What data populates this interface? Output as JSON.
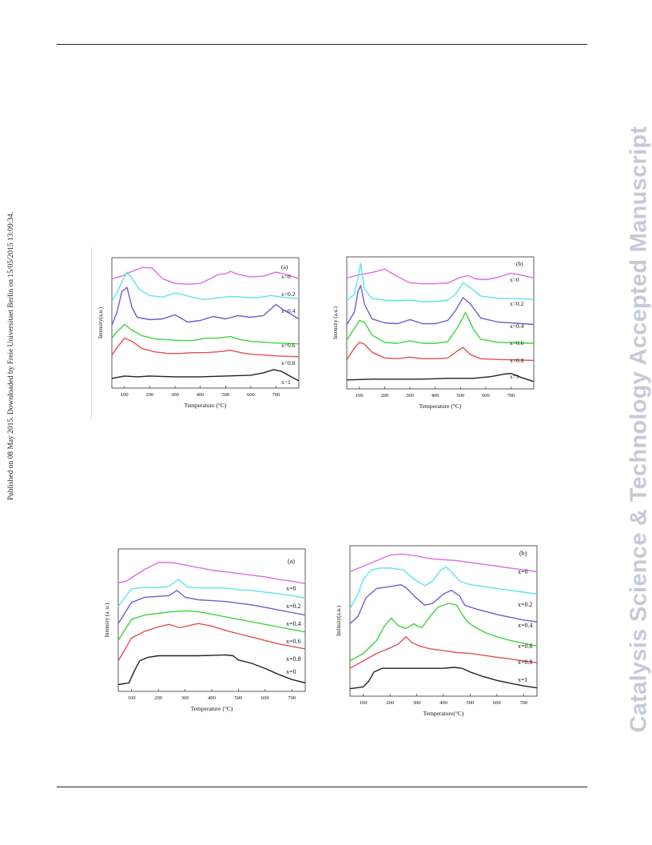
{
  "page": {
    "side_note": "Published on 08 May 2015. Downloaded by Freie Universitaet Berlin on 15/05/2015 13:09:34.",
    "watermark": "Catalysis Science & Technology Accepted Manuscript"
  },
  "figures": {
    "top": [
      {
        "panel_label": "(a)",
        "ylabel": "Intensity(a.u.)",
        "xlabel": "Temperature (°C)",
        "labels": [
          "x=0",
          "x=0.2",
          "x=0.4",
          "x=0.6",
          "x=0.8",
          "x=1"
        ]
      },
      {
        "panel_label": "(b)",
        "ylabel": "Intensity (a.u.)",
        "xlabel": "Temperature (°C)",
        "labels": [
          "x=0",
          "x=0.2",
          "x=0.4",
          "x=0.6",
          "x=0.8",
          "x=1"
        ]
      }
    ],
    "bottom": [
      {
        "panel_label": "(a)",
        "ylabel": "Intensity (a. u.)",
        "xlabel": "Temperature (°C)",
        "labels": [
          "x=0",
          "x=0.2",
          "x=0.4",
          "x=0.6",
          "x=0.8",
          "x=0"
        ]
      },
      {
        "panel_label": "(b)",
        "ylabel": "Intinsity(a.u.)",
        "xlabel": "Temperature(°C)",
        "labels": [
          "x=0",
          "x=0.2",
          "x=0.4",
          "x=0.6",
          "x=0.8",
          "x=1"
        ]
      }
    ]
  },
  "chart_data": [
    {
      "type": "line",
      "panel": "(a)",
      "xlabel": "Temperature (°C)",
      "ylabel": "Intensity(a.u.)",
      "xlim": [
        50,
        790
      ],
      "xticks": [
        100,
        200,
        300,
        400,
        500,
        600,
        700
      ],
      "colors": [
        "#e06be0",
        "#5ce6e6",
        "#6a5fd0",
        "#3ed43e",
        "#e05252",
        "#222222"
      ],
      "series": [
        {
          "name": "x=0",
          "x": [
            50,
            90,
            130,
            170,
            210,
            250,
            300,
            350,
            400,
            440,
            470,
            500,
            520,
            550,
            600,
            650,
            700,
            740,
            790
          ],
          "y": [
            5.3,
            5.45,
            5.75,
            6.0,
            5.95,
            5.3,
            5.0,
            4.95,
            5.0,
            5.3,
            5.55,
            5.6,
            5.75,
            5.55,
            5.4,
            5.45,
            5.7,
            5.55,
            5.3
          ]
        },
        {
          "name": "x=0.2",
          "x": [
            50,
            70,
            90,
            110,
            130,
            160,
            200,
            250,
            300,
            330,
            380,
            420,
            470,
            520,
            570,
            620,
            680,
            720,
            790
          ],
          "y": [
            3.9,
            4.4,
            5.1,
            5.7,
            5.3,
            4.6,
            4.25,
            4.15,
            4.4,
            4.3,
            4.1,
            4.0,
            4.1,
            4.2,
            4.15,
            4.1,
            4.25,
            4.15,
            4.05
          ]
        },
        {
          "name": "x=0.4",
          "x": [
            50,
            70,
            90,
            110,
            130,
            150,
            200,
            250,
            300,
            350,
            400,
            450,
            500,
            550,
            600,
            650,
            700,
            730,
            790
          ],
          "y": [
            2.4,
            3.2,
            4.5,
            4.75,
            3.5,
            2.9,
            2.75,
            2.8,
            3.05,
            2.6,
            2.7,
            2.95,
            2.8,
            3.0,
            2.9,
            3.0,
            3.7,
            3.35,
            2.8
          ]
        },
        {
          "name": "x=0.6",
          "x": [
            50,
            70,
            100,
            130,
            170,
            220,
            270,
            320,
            370,
            420,
            470,
            520,
            560,
            600,
            650,
            700,
            790
          ],
          "y": [
            1.6,
            2.0,
            2.45,
            2.1,
            1.75,
            1.55,
            1.5,
            1.45,
            1.45,
            1.6,
            1.6,
            1.7,
            1.5,
            1.4,
            1.35,
            1.3,
            1.25
          ]
        },
        {
          "name": "x=0.8",
          "x": [
            50,
            70,
            100,
            130,
            170,
            220,
            270,
            320,
            370,
            420,
            470,
            520,
            560,
            600,
            650,
            700,
            790
          ],
          "y": [
            0.55,
            1.0,
            1.6,
            1.4,
            0.95,
            0.75,
            0.65,
            0.65,
            0.7,
            0.7,
            0.75,
            0.85,
            0.7,
            0.6,
            0.55,
            0.5,
            0.45
          ]
        },
        {
          "name": "x=1",
          "x": [
            50,
            100,
            150,
            200,
            300,
            400,
            500,
            600,
            650,
            690,
            720,
            760,
            790
          ],
          "y": [
            -0.9,
            -0.75,
            -0.8,
            -0.75,
            -0.8,
            -0.8,
            -0.75,
            -0.7,
            -0.55,
            -0.35,
            -0.45,
            -0.8,
            -1.05
          ]
        }
      ]
    },
    {
      "type": "line",
      "panel": "(b)",
      "xlabel": "Temperature (°C)",
      "ylabel": "Intensity (a.u.)",
      "xlim": [
        50,
        790
      ],
      "xticks": [
        100,
        200,
        300,
        400,
        500,
        600,
        700
      ],
      "colors": [
        "#e06be0",
        "#5ce6e6",
        "#6a5fd0",
        "#3ed43e",
        "#e05252",
        "#222222"
      ],
      "series": [
        {
          "name": "x=0",
          "x": [
            50,
            100,
            150,
            200,
            250,
            300,
            350,
            400,
            450,
            500,
            530,
            560,
            600,
            650,
            700,
            750,
            790
          ],
          "y": [
            5.3,
            5.5,
            5.65,
            5.85,
            5.4,
            5.0,
            4.95,
            4.95,
            5.0,
            5.35,
            5.45,
            5.25,
            5.2,
            5.35,
            5.6,
            5.45,
            5.3
          ]
        },
        {
          "name": "x=0.2",
          "x": [
            50,
            80,
            95,
            105,
            120,
            150,
            200,
            250,
            300,
            350,
            400,
            450,
            480,
            510,
            540,
            580,
            650,
            700,
            790
          ],
          "y": [
            3.9,
            4.3,
            5.3,
            6.2,
            4.6,
            4.05,
            3.95,
            3.9,
            3.95,
            3.85,
            3.85,
            3.95,
            4.3,
            5.0,
            4.7,
            4.2,
            4.05,
            4.05,
            4.0
          ]
        },
        {
          "name": "x=0.4",
          "x": [
            50,
            80,
            95,
            105,
            120,
            150,
            200,
            250,
            300,
            350,
            400,
            450,
            480,
            510,
            540,
            580,
            650,
            700,
            790
          ],
          "y": [
            2.45,
            3.2,
            4.5,
            4.85,
            3.7,
            2.8,
            2.55,
            2.5,
            2.75,
            2.5,
            2.5,
            2.7,
            3.3,
            4.1,
            3.7,
            2.85,
            2.6,
            2.55,
            2.45
          ]
        },
        {
          "name": "x=0.6",
          "x": [
            50,
            80,
            100,
            120,
            150,
            200,
            250,
            300,
            350,
            400,
            450,
            490,
            520,
            550,
            580,
            650,
            790
          ],
          "y": [
            1.5,
            2.2,
            2.7,
            2.6,
            1.8,
            1.35,
            1.3,
            1.45,
            1.3,
            1.3,
            1.4,
            2.3,
            3.2,
            2.2,
            1.55,
            1.35,
            1.3
          ]
        },
        {
          "name": "x=0.8",
          "x": [
            50,
            80,
            100,
            120,
            150,
            200,
            250,
            300,
            350,
            400,
            450,
            490,
            510,
            540,
            580,
            650,
            790
          ],
          "y": [
            0.3,
            1.0,
            1.35,
            1.25,
            0.75,
            0.4,
            0.35,
            0.45,
            0.35,
            0.35,
            0.4,
            0.85,
            1.05,
            0.6,
            0.35,
            0.3,
            0.25
          ]
        },
        {
          "name": "x=1",
          "x": [
            50,
            150,
            250,
            350,
            450,
            550,
            620,
            670,
            700,
            740,
            790
          ],
          "y": [
            -0.95,
            -0.9,
            -0.9,
            -0.9,
            -0.85,
            -0.85,
            -0.75,
            -0.6,
            -0.55,
            -0.8,
            -1.05
          ]
        }
      ]
    },
    {
      "type": "line",
      "panel": "(a)",
      "xlabel": "Temperature (°C)",
      "ylabel": "Intensity (a. u.)",
      "xlim": [
        50,
        750
      ],
      "xticks": [
        100,
        200,
        300,
        400,
        500,
        600,
        700
      ],
      "colors": [
        "#e06be0",
        "#5ce6e6",
        "#6a5fd0",
        "#3ed43e",
        "#e05252",
        "#222222"
      ],
      "series": [
        {
          "name": "x=0",
          "x": [
            50,
            80,
            100,
            150,
            200,
            250,
            300,
            350,
            400,
            450,
            500,
            550,
            600,
            650,
            700,
            750
          ],
          "y": [
            6.0,
            6.1,
            6.3,
            6.8,
            7.2,
            7.2,
            7.05,
            6.9,
            6.75,
            6.65,
            6.55,
            6.45,
            6.35,
            6.2,
            6.1,
            5.95
          ]
        },
        {
          "name": "x=0.2",
          "x": [
            50,
            80,
            100,
            150,
            200,
            240,
            275,
            310,
            350,
            400,
            450,
            500,
            550,
            600,
            650,
            700,
            750
          ],
          "y": [
            4.6,
            5.25,
            5.65,
            5.75,
            5.7,
            5.8,
            6.2,
            5.75,
            5.7,
            5.7,
            5.7,
            5.6,
            5.55,
            5.45,
            5.35,
            5.25,
            5.1
          ]
        },
        {
          "name": "x=0.4",
          "x": [
            50,
            80,
            100,
            150,
            200,
            240,
            270,
            300,
            350,
            400,
            450,
            500,
            550,
            600,
            650,
            700,
            750
          ],
          "y": [
            3.6,
            4.35,
            4.85,
            5.15,
            5.2,
            5.25,
            5.55,
            5.15,
            5.0,
            4.95,
            4.9,
            4.8,
            4.7,
            4.55,
            4.4,
            4.25,
            4.1
          ]
        },
        {
          "name": "x=0.6",
          "x": [
            50,
            80,
            100,
            150,
            200,
            250,
            300,
            350,
            400,
            450,
            500,
            550,
            600,
            650,
            700,
            750
          ],
          "y": [
            2.6,
            3.35,
            3.85,
            4.1,
            4.2,
            4.3,
            4.35,
            4.3,
            4.15,
            4.0,
            3.85,
            3.7,
            3.55,
            3.4,
            3.25,
            3.1
          ]
        },
        {
          "name": "x=0.8",
          "x": [
            50,
            80,
            100,
            150,
            200,
            240,
            280,
            320,
            350,
            400,
            450,
            500,
            550,
            600,
            650,
            700,
            750
          ],
          "y": [
            1.4,
            2.2,
            2.75,
            3.15,
            3.4,
            3.55,
            3.35,
            3.5,
            3.6,
            3.45,
            3.2,
            3.0,
            2.8,
            2.6,
            2.4,
            2.25,
            2.1
          ]
        },
        {
          "name": "x=0",
          "x": [
            50,
            90,
            110,
            130,
            160,
            200,
            250,
            300,
            350,
            400,
            450,
            480,
            500,
            550,
            600,
            650,
            700,
            750
          ],
          "y": [
            0.0,
            0.1,
            0.8,
            1.4,
            1.6,
            1.7,
            1.7,
            1.7,
            1.7,
            1.72,
            1.75,
            1.7,
            1.45,
            1.25,
            0.95,
            0.6,
            0.3,
            0.1
          ]
        }
      ]
    },
    {
      "type": "line",
      "panel": "(b)",
      "xlabel": "Temperature(°C)",
      "ylabel": "Intinsity(a.u.)",
      "xlim": [
        50,
        750
      ],
      "xticks": [
        100,
        200,
        300,
        400,
        500,
        600,
        700
      ],
      "colors": [
        "#e06be0",
        "#5ce6e6",
        "#6a5fd0",
        "#3ed43e",
        "#e05252",
        "#222222"
      ],
      "series": [
        {
          "name": "x=0",
          "x": [
            50,
            100,
            150,
            200,
            250,
            300,
            350,
            400,
            450,
            500,
            550,
            600,
            650,
            700,
            750
          ],
          "y": [
            6.2,
            6.5,
            6.8,
            7.1,
            7.15,
            7.05,
            6.9,
            6.85,
            6.8,
            6.7,
            6.6,
            6.5,
            6.4,
            6.3,
            6.2
          ]
        },
        {
          "name": "x=0.2",
          "x": [
            50,
            80,
            100,
            130,
            160,
            200,
            250,
            290,
            330,
            360,
            390,
            410,
            430,
            460,
            500,
            550,
            600,
            650,
            700,
            750
          ],
          "y": [
            4.2,
            5.0,
            5.8,
            6.3,
            6.4,
            6.4,
            6.3,
            5.8,
            5.45,
            5.7,
            6.3,
            6.45,
            6.2,
            5.7,
            5.5,
            5.4,
            5.3,
            5.2,
            5.1,
            5.0
          ]
        },
        {
          "name": "x=0.4",
          "x": [
            50,
            80,
            110,
            150,
            200,
            240,
            260,
            290,
            330,
            360,
            400,
            430,
            460,
            480,
            520,
            600,
            650,
            700,
            750
          ],
          "y": [
            3.4,
            3.8,
            4.8,
            5.3,
            5.4,
            5.5,
            5.35,
            4.9,
            4.4,
            4.5,
            5.0,
            5.2,
            4.9,
            4.4,
            4.2,
            3.9,
            3.75,
            3.6,
            3.5
          ]
        },
        {
          "name": "x=0.6",
          "x": [
            50,
            100,
            150,
            180,
            205,
            230,
            260,
            290,
            305,
            320,
            350,
            380,
            420,
            450,
            470,
            490,
            520,
            560,
            600,
            650,
            700,
            750
          ],
          "y": [
            1.4,
            1.8,
            2.5,
            3.3,
            3.7,
            3.3,
            3.15,
            3.4,
            3.25,
            3.2,
            3.8,
            4.3,
            4.5,
            4.4,
            3.9,
            3.5,
            3.2,
            2.9,
            2.7,
            2.5,
            2.35,
            2.2
          ]
        },
        {
          "name": "x=0.8",
          "x": [
            50,
            100,
            150,
            200,
            230,
            260,
            280,
            310,
            350,
            400,
            450,
            500,
            550,
            600,
            650,
            700,
            750
          ],
          "y": [
            1.0,
            1.4,
            1.8,
            2.1,
            2.3,
            2.7,
            2.4,
            2.2,
            2.05,
            1.95,
            1.85,
            1.8,
            1.7,
            1.6,
            1.5,
            1.4,
            1.3
          ]
        },
        {
          "name": "x=1",
          "x": [
            50,
            100,
            120,
            140,
            170,
            200,
            300,
            400,
            440,
            470,
            500,
            550,
            600,
            650,
            700,
            750
          ],
          "y": [
            -0.1,
            0.0,
            0.3,
            0.8,
            1.0,
            1.0,
            1.0,
            1.0,
            1.05,
            1.0,
            0.8,
            0.55,
            0.35,
            0.2,
            0.05,
            -0.05
          ]
        }
      ]
    }
  ]
}
